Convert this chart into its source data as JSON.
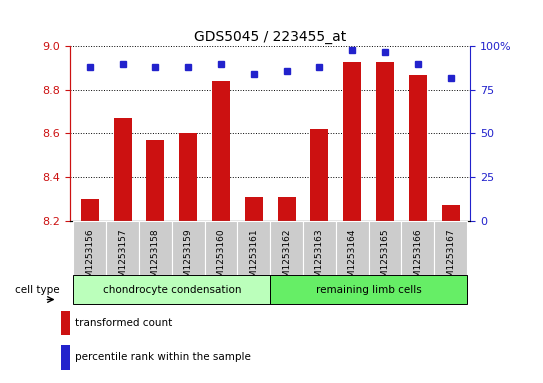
{
  "title": "GDS5045 / 223455_at",
  "samples": [
    "GSM1253156",
    "GSM1253157",
    "GSM1253158",
    "GSM1253159",
    "GSM1253160",
    "GSM1253161",
    "GSM1253162",
    "GSM1253163",
    "GSM1253164",
    "GSM1253165",
    "GSM1253166",
    "GSM1253167"
  ],
  "transformed_count": [
    8.3,
    8.67,
    8.57,
    8.6,
    8.84,
    8.31,
    8.31,
    8.62,
    8.93,
    8.93,
    8.87,
    8.27
  ],
  "percentile_rank": [
    88,
    90,
    88,
    88,
    90,
    84,
    86,
    88,
    98,
    97,
    90,
    82
  ],
  "ylim_left": [
    8.2,
    9.0
  ],
  "ylim_right": [
    0,
    100
  ],
  "yticks_left": [
    8.2,
    8.4,
    8.6,
    8.8,
    9.0
  ],
  "yticks_right": [
    0,
    25,
    50,
    75,
    100
  ],
  "bar_color": "#cc1111",
  "dot_color": "#2222cc",
  "bar_width": 0.55,
  "group1_label": "chondrocyte condensation",
  "group2_label": "remaining limb cells",
  "group1_count": 6,
  "group2_count": 6,
  "group1_color": "#bbffbb",
  "group2_color": "#66ee66",
  "cell_type_label": "cell type",
  "legend_bar_label": "transformed count",
  "legend_dot_label": "percentile rank within the sample",
  "left_axis_color": "#cc1111",
  "right_axis_color": "#2222cc",
  "background_color": "#ffffff",
  "ticklabel_gray": "#cccccc",
  "title_fontsize": 10,
  "axis_fontsize": 8,
  "label_fontsize": 7.5
}
